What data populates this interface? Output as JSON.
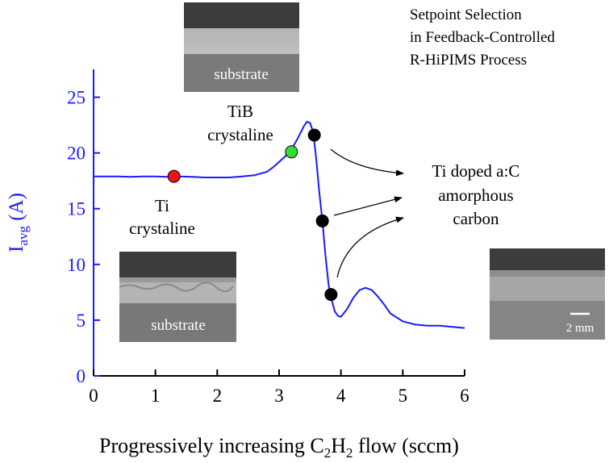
{
  "colors": {
    "axis_left": "#1a1aff",
    "axis_bottom": "#000000",
    "curve": "#1a1aff",
    "marker_ti": "#e8141c",
    "marker_tib": "#33dd33",
    "marker_carbon": "#000000",
    "sem_bg": "#6e6e6e"
  },
  "title_lines": [
    "Setpoint Selection",
    "in Feedback-Controlled",
    "R-HiPIMS Process"
  ],
  "annotations": {
    "ti_line1": "Ti",
    "ti_line2": "crystaline",
    "tib_line1": "TiB",
    "tib_line2": "crystaline",
    "carbon_line1": "Ti doped a:C",
    "carbon_line2": "amorphous",
    "carbon_line3": "carbon"
  },
  "sem_images": {
    "top_label": "substrate",
    "left_label": "substrate",
    "scale_bar": "2 mm"
  },
  "chart_data": {
    "type": "line",
    "xlabel_prefix": "Progressively increasing C",
    "xlabel_sub1": "2",
    "xlabel_mid": "H",
    "xlabel_sub2": "2",
    "xlabel_suffix": " flow (sccm)",
    "ylabel_main": "I",
    "ylabel_sub": "avg",
    "ylabel_suffix": " (A)",
    "xlim": [
      0,
      6
    ],
    "ylim": [
      0,
      27.5
    ],
    "xticks": [
      0,
      1,
      2,
      3,
      4,
      5,
      6
    ],
    "yticks": [
      0,
      5,
      10,
      15,
      20,
      25
    ],
    "grid": false,
    "series": [
      {
        "x": [
          0,
          0.2,
          0.4,
          0.6,
          0.8,
          1.0,
          1.2,
          1.4,
          1.6,
          1.8,
          2.0,
          2.2,
          2.4,
          2.6,
          2.8,
          2.9,
          3.0,
          3.1,
          3.2,
          3.3,
          3.4,
          3.45,
          3.5,
          3.55,
          3.6,
          3.65,
          3.7,
          3.75,
          3.8,
          3.85,
          3.9,
          3.95,
          4.0,
          4.1,
          4.2,
          4.3,
          4.4,
          4.5,
          4.6,
          4.7,
          4.8,
          5.0,
          5.2,
          5.4,
          5.6,
          5.8,
          6.0
        ],
        "y": [
          17.9,
          17.9,
          17.9,
          17.85,
          17.9,
          17.9,
          17.85,
          17.9,
          17.85,
          17.8,
          17.8,
          17.8,
          17.9,
          18.0,
          18.3,
          18.7,
          19.2,
          19.7,
          20.3,
          21.3,
          22.4,
          22.8,
          22.7,
          21.9,
          19.5,
          16.5,
          13.9,
          10.8,
          8.2,
          6.8,
          5.8,
          5.4,
          5.3,
          6.0,
          7.0,
          7.7,
          7.9,
          7.7,
          7.1,
          6.4,
          5.6,
          4.9,
          4.6,
          4.5,
          4.5,
          4.4,
          4.3
        ]
      }
    ],
    "markers": [
      {
        "x": 1.3,
        "y": 17.9,
        "color": "#e8141c"
      },
      {
        "x": 3.2,
        "y": 20.1,
        "color": "#33dd33"
      },
      {
        "x": 3.57,
        "y": 21.6,
        "color": "#000000"
      },
      {
        "x": 3.7,
        "y": 13.9,
        "color": "#000000"
      },
      {
        "x": 3.84,
        "y": 7.3,
        "color": "#000000"
      }
    ]
  }
}
